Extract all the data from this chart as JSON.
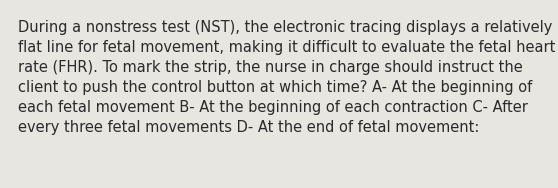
{
  "text": "During a nonstress test (NST), the electronic tracing displays a relatively flat line for fetal movement, making it difficult to evaluate the fetal heart rate (FHR). To mark the strip, the nurse in charge should instruct the client to push the control button at which time? A- At the beginning of each fetal movement B- At the beginning of each contraction C- After every three fetal movements D- At the end of fetal movement:",
  "background_color": "#e8e6e1",
  "text_color": "#2a2a2a",
  "font_size": 10.5,
  "font_family": "DejaVu Sans",
  "fig_width": 5.58,
  "fig_height": 1.88,
  "dpi": 100
}
